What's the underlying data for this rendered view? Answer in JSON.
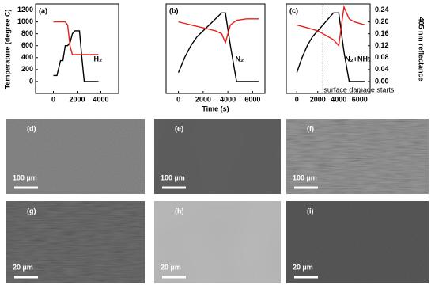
{
  "chart_data": [
    {
      "type": "line",
      "title": "(a)",
      "gas": "H₂",
      "ylabel": "Temperature (degree C)",
      "x": [
        0,
        300,
        600,
        800,
        1000,
        1200,
        1400,
        1600,
        1800,
        2000,
        2200,
        2400,
        2600,
        2800,
        3200,
        3800
      ],
      "series": [
        {
          "color": "#000000",
          "values": [
            100,
            100,
            350,
            350,
            600,
            600,
            650,
            800,
            850,
            850,
            850,
            400,
            0,
            0,
            0,
            0
          ]
        },
        {
          "color": "#e8201a",
          "axis": "y2",
          "values": [
            0.2,
            0.2,
            0.2,
            0.2,
            0.2,
            0.19,
            0.12,
            0.09,
            0.09,
            0.09,
            0.09,
            0.09,
            0.09,
            0.09,
            0.09,
            0.09
          ]
        }
      ],
      "xlim": [
        -1500,
        5500
      ],
      "xticks": [
        0,
        2000,
        4000
      ],
      "ylim": [
        -200,
        1300
      ],
      "yticks": [
        0,
        200,
        400,
        600,
        800,
        1000,
        1200
      ],
      "y2lim": [
        -0.04,
        0.26
      ]
    },
    {
      "type": "line",
      "title": "(b)",
      "gas": "N₂",
      "xlabel": "Time (s)",
      "x": [
        0,
        500,
        1000,
        1500,
        2000,
        2500,
        3000,
        3500,
        3800,
        4200,
        4700,
        5500,
        6500
      ],
      "series": [
        {
          "color": "#000000",
          "values": [
            150,
            400,
            600,
            750,
            850,
            950,
            1050,
            1150,
            1150,
            600,
            0,
            0,
            0
          ]
        },
        {
          "color": "#e8201a",
          "axis": "y2",
          "values": [
            0.2,
            0.195,
            0.19,
            0.185,
            0.18,
            0.175,
            0.17,
            0.16,
            0.13,
            0.19,
            0.205,
            0.21,
            0.21
          ]
        }
      ],
      "xlim": [
        -1000,
        7000
      ],
      "xticks": [
        0,
        2000,
        4000,
        6000
      ],
      "ylim": [
        -200,
        1300
      ],
      "y2lim": [
        -0.04,
        0.26
      ]
    },
    {
      "type": "line",
      "title": "(c)",
      "gas": "N₂+NH₃",
      "y2label": "405 nm reflectance",
      "annotations": [
        {
          "text": "surface damage starts",
          "x": 2500
        }
      ],
      "x": [
        0,
        500,
        1000,
        1500,
        2000,
        2500,
        3000,
        3500,
        4000,
        4500,
        5000,
        5500,
        6500
      ],
      "series": [
        {
          "color": "#000000",
          "values": [
            150,
            400,
            600,
            750,
            850,
            950,
            1050,
            1150,
            1150,
            500,
            0,
            0,
            0
          ]
        },
        {
          "color": "#e8201a",
          "axis": "y2",
          "values": [
            0.19,
            0.185,
            0.18,
            0.175,
            0.17,
            0.16,
            0.15,
            0.14,
            0.12,
            0.25,
            0.21,
            0.2,
            0.19
          ]
        }
      ],
      "xlim": [
        -1000,
        7000
      ],
      "xticks": [
        0,
        2000,
        4000,
        6000
      ],
      "ylim": [
        -200,
        1300
      ],
      "y2lim": [
        -0.04,
        0.26
      ],
      "y2ticks": [
        {
          "value": 0,
          "label": "0.00"
        },
        {
          "value": 0.04,
          "label": "0.04"
        },
        {
          "value": 0.08,
          "label": "0.08"
        },
        {
          "value": 0.12,
          "label": "0.12"
        },
        {
          "value": 0.16,
          "label": "0.16"
        },
        {
          "value": 0.2,
          "label": "0.20"
        },
        {
          "value": 0.24,
          "label": "0.24"
        }
      ]
    }
  ],
  "micrographs": [
    {
      "label": "(d)",
      "scale": "100 µm"
    },
    {
      "label": "(e)",
      "scale": "100 µm"
    },
    {
      "label": "(f)",
      "scale": "100 µm"
    },
    {
      "label": "(g)",
      "scale": "20 µm"
    },
    {
      "label": "(h)",
      "scale": "20 µm"
    },
    {
      "label": "(i)",
      "scale": "20 µm"
    }
  ]
}
